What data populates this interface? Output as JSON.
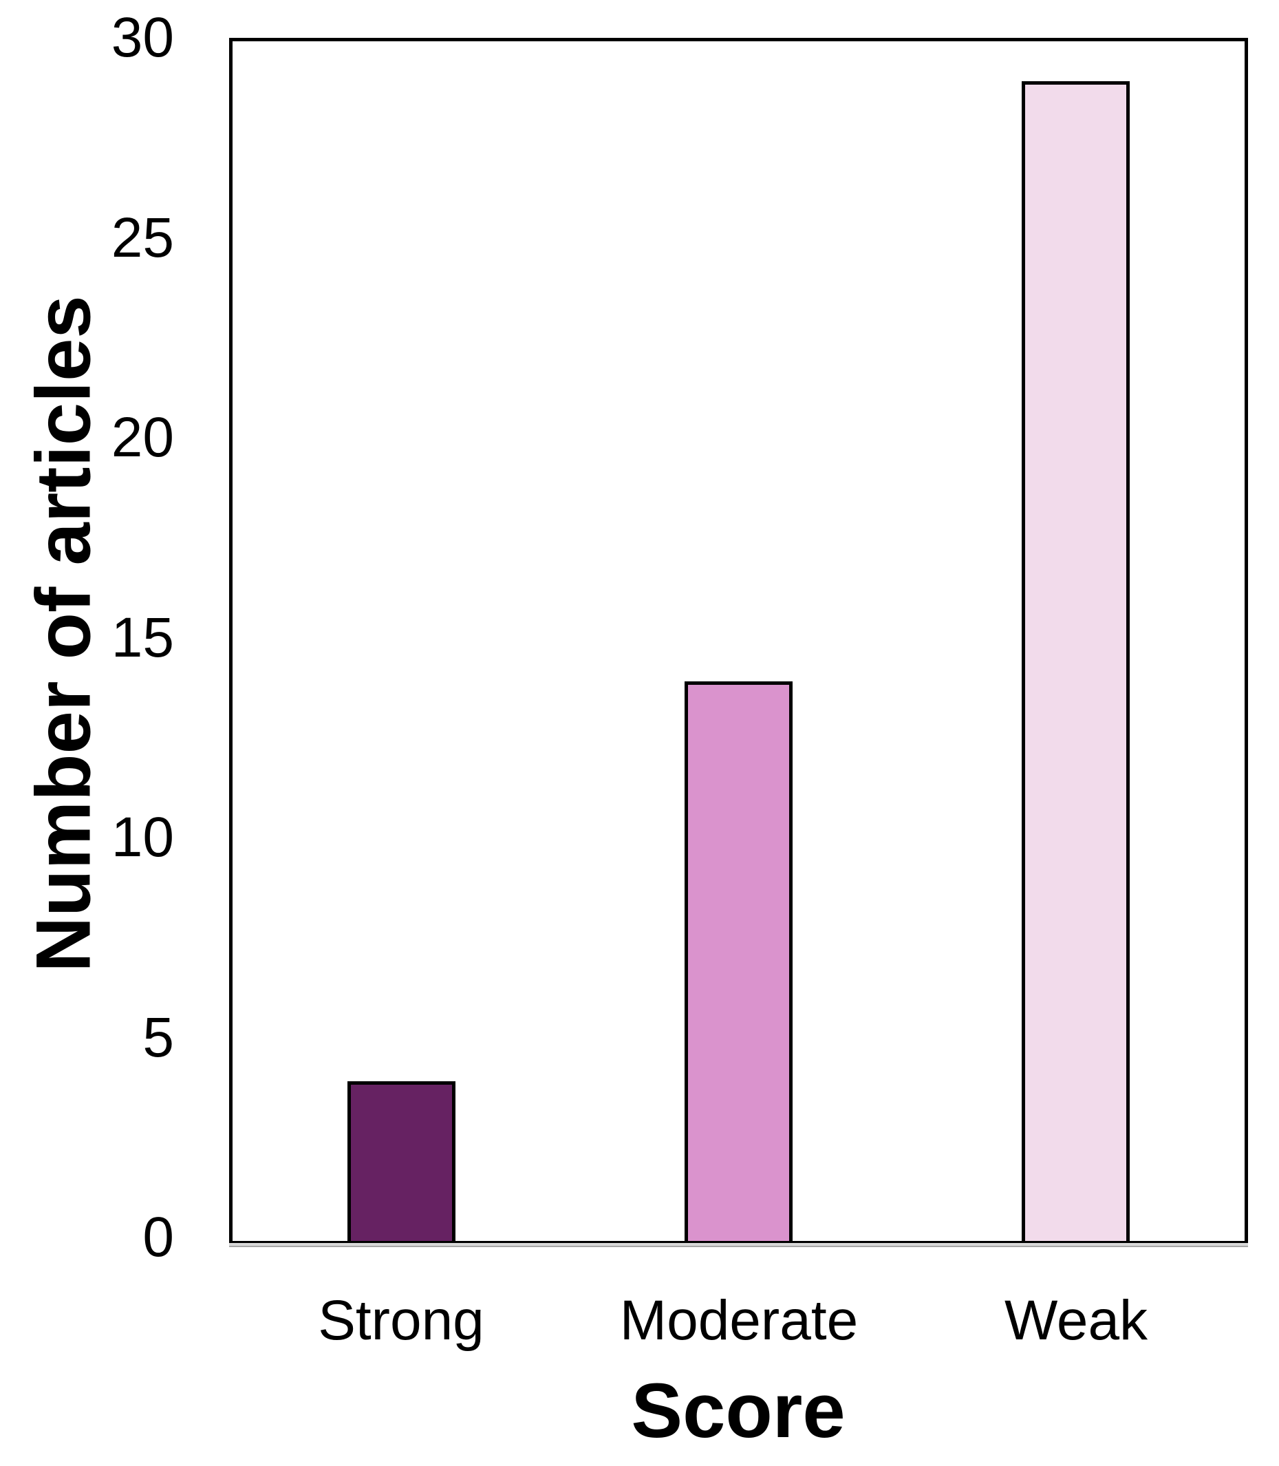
{
  "figure": {
    "background_color": "#ffffff",
    "text_color": "#000000"
  },
  "chart_data": {
    "type": "bar",
    "title": "",
    "categories": [
      "Strong",
      "Moderate",
      "Weak"
    ],
    "values": [
      4,
      14,
      29
    ],
    "xlabel": "Score",
    "ylabel": "Number of articles",
    "ylim": [
      0,
      30
    ],
    "yticks": [
      0,
      5,
      10,
      15,
      20,
      25,
      30
    ],
    "grid": false,
    "legend_position": "none",
    "bar_colors": [
      "#662262",
      "#DA93CD",
      "#F2DBEB"
    ],
    "bar_border_color": "#000000",
    "plot_border_color": "#000000",
    "axis_line": {
      "band_fill": "#D9D9D9",
      "band_top_edge": "#000000",
      "band_bottom_edge": "#A6A6A6"
    }
  }
}
